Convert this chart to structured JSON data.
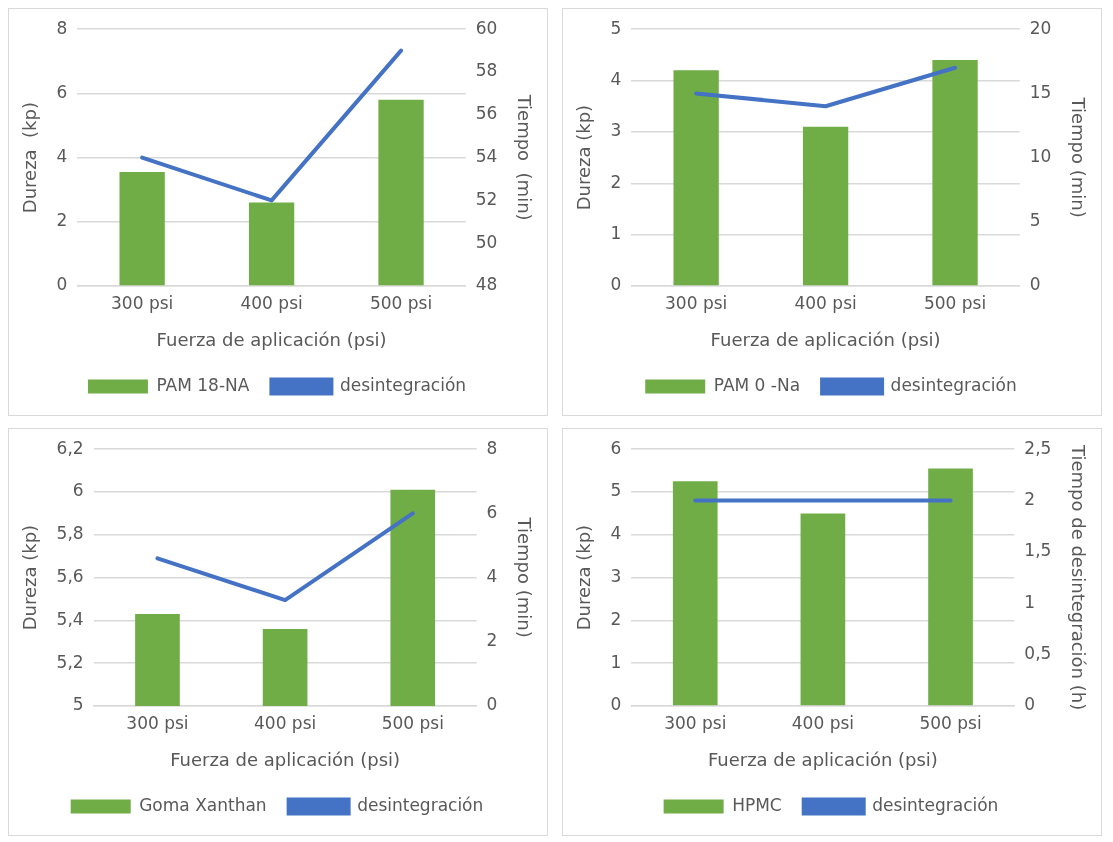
{
  "chart_data": [
    {
      "type": "bar",
      "xlabel": "Fuerza de aplicación (psi)",
      "ylabel": "Dureza  (kp)",
      "y2label": "Tiempo  (min)",
      "categories": [
        "300 psi",
        "400 psi",
        "500 psi"
      ],
      "series": [
        {
          "name": "PAM 18-NA",
          "color": "#70ad47",
          "values": [
            3.55,
            2.6,
            5.8
          ]
        },
        {
          "name": "desintegración",
          "type": "line",
          "axis": "y2",
          "color": "#4472c4",
          "values": [
            54,
            52,
            59
          ]
        }
      ],
      "ylim": [
        0,
        8
      ],
      "yticks": [
        0,
        2,
        4,
        6,
        8
      ],
      "y2lim": [
        48,
        60
      ],
      "y2ticks": [
        48,
        50,
        52,
        54,
        56,
        58,
        60
      ],
      "grid": "y",
      "legend": "bottom",
      "marker": "none"
    },
    {
      "type": "bar",
      "xlabel": "Fuerza de aplicación (psi)",
      "ylabel": "Dureza (kp)",
      "y2label": "Tiempo (min)",
      "categories": [
        "300 psi",
        "400 psi",
        "500 psi"
      ],
      "series": [
        {
          "name": "PAM 0 -Na",
          "color": "#70ad47",
          "values": [
            4.2,
            3.1,
            4.4
          ]
        },
        {
          "name": "desintegración",
          "type": "line",
          "axis": "y2",
          "color": "#4472c4",
          "values": [
            15,
            14,
            17
          ]
        }
      ],
      "ylim": [
        0,
        5
      ],
      "yticks": [
        0,
        1,
        2,
        3,
        4,
        5
      ],
      "y2lim": [
        0,
        20
      ],
      "y2ticks": [
        0,
        5,
        10,
        15,
        20
      ],
      "grid": "y",
      "legend": "bottom",
      "marker": "none"
    },
    {
      "type": "bar",
      "xlabel": "Fuerza de aplicación (psi)",
      "ylabel": "Dureza (kp)",
      "y2label": "Tiempo (min)",
      "categories": [
        "300 psi",
        "400 psi",
        "500 psi"
      ],
      "series": [
        {
          "name": "Goma Xanthan",
          "color": "#70ad47",
          "values": [
            5.43,
            5.36,
            6.01
          ]
        },
        {
          "name": "desintegración",
          "type": "line",
          "axis": "y2",
          "color": "#4472c4",
          "values": [
            4.6,
            3.3,
            6
          ]
        }
      ],
      "ylim": [
        5,
        6.2
      ],
      "yticks": [
        5,
        {
          "value": 5.2,
          "label": "5,2"
        },
        {
          "value": 5.4,
          "label": "5,4"
        },
        {
          "value": 5.6,
          "label": "5,6"
        },
        {
          "value": 5.8,
          "label": "5,8"
        },
        6,
        {
          "value": 6.2,
          "label": "6,2"
        }
      ],
      "y2lim": [
        0,
        8
      ],
      "y2ticks": [
        0,
        2,
        4,
        6,
        8
      ],
      "grid": "y",
      "legend": "bottom",
      "marker": "none"
    },
    {
      "type": "bar",
      "xlabel": "Fuerza de aplicación (psi)",
      "ylabel": "Dureza (kp)",
      "y2label": "Tiempo de desintegración (h)",
      "categories": [
        "300 psi",
        "400 psi",
        "500 psi"
      ],
      "series": [
        {
          "name": "HPMC",
          "color": "#70ad47",
          "values": [
            5.25,
            4.5,
            5.55
          ]
        },
        {
          "name": "desintegración",
          "type": "line",
          "axis": "y2",
          "color": "#4472c4",
          "values": [
            2,
            2,
            2
          ]
        }
      ],
      "ylim": [
        0,
        6
      ],
      "yticks": [
        0,
        1,
        2,
        3,
        4,
        5,
        6
      ],
      "y2lim": [
        0,
        2.5
      ],
      "y2ticks": [
        0,
        {
          "value": 0.5,
          "label": "0,5"
        },
        1,
        {
          "value": 1.5,
          "label": "1,5"
        },
        2,
        {
          "value": 2.5,
          "label": "2,5"
        }
      ],
      "grid": "y",
      "legend": "bottom",
      "marker": "none"
    }
  ]
}
